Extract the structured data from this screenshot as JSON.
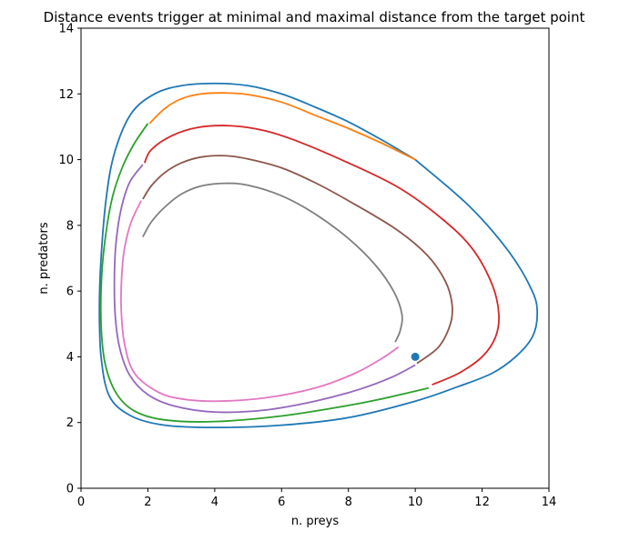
{
  "chart_data": {
    "type": "line",
    "title": "Distance events trigger at minimal and maximal distance from the target point",
    "xlabel": "n. preys",
    "ylabel": "n. predators",
    "xlim": [
      0,
      14
    ],
    "ylim": [
      0,
      14
    ],
    "xticks": [
      0,
      2,
      4,
      6,
      8,
      10,
      12,
      14
    ],
    "yticks": [
      0,
      2,
      4,
      6,
      8,
      10,
      12,
      14
    ],
    "grid": false,
    "legend": "none",
    "target_point": {
      "x": 10,
      "y": 4,
      "color": "#1f77b4"
    },
    "series": [
      {
        "color": "#1f77b4",
        "points": [
          [
            10.0,
            10.0
          ],
          [
            11.6,
            8.6
          ],
          [
            12.8,
            7.2
          ],
          [
            13.5,
            6.0
          ],
          [
            13.65,
            5.3
          ],
          [
            13.5,
            4.6
          ],
          [
            13.0,
            4.0
          ],
          [
            12.3,
            3.5
          ],
          [
            11.3,
            3.1
          ],
          [
            10.0,
            2.65
          ],
          [
            8.0,
            2.15
          ],
          [
            6.0,
            1.92
          ],
          [
            4.0,
            1.85
          ],
          [
            2.5,
            1.92
          ],
          [
            1.5,
            2.2
          ],
          [
            0.85,
            2.8
          ],
          [
            0.6,
            4.0
          ],
          [
            0.55,
            5.5
          ],
          [
            0.6,
            7.0
          ],
          [
            0.75,
            8.8
          ],
          [
            1.0,
            10.2
          ],
          [
            1.5,
            11.4
          ],
          [
            2.2,
            12.0
          ],
          [
            3.0,
            12.25
          ],
          [
            4.0,
            12.32
          ],
          [
            5.0,
            12.25
          ],
          [
            6.0,
            12.0
          ],
          [
            7.0,
            11.6
          ],
          [
            8.0,
            11.15
          ],
          [
            9.0,
            10.6
          ],
          [
            10.0,
            10.0
          ]
        ]
      },
      {
        "color": "#ff7f0e",
        "points": [
          [
            2.05,
            11.1
          ],
          [
            2.5,
            11.55
          ],
          [
            3.0,
            11.85
          ],
          [
            3.6,
            12.0
          ],
          [
            4.3,
            12.03
          ],
          [
            5.0,
            11.98
          ],
          [
            6.0,
            11.75
          ],
          [
            7.0,
            11.35
          ],
          [
            8.0,
            10.95
          ],
          [
            9.0,
            10.5
          ],
          [
            10.0,
            10.0
          ]
        ]
      },
      {
        "color": "#2ca02c",
        "points": [
          [
            10.4,
            3.05
          ],
          [
            9.0,
            2.72
          ],
          [
            8.0,
            2.52
          ],
          [
            6.0,
            2.2
          ],
          [
            4.0,
            2.03
          ],
          [
            2.5,
            2.08
          ],
          [
            1.6,
            2.35
          ],
          [
            1.05,
            2.9
          ],
          [
            0.72,
            3.8
          ],
          [
            0.6,
            5.0
          ],
          [
            0.62,
            6.5
          ],
          [
            0.75,
            7.8
          ],
          [
            0.95,
            8.9
          ],
          [
            1.25,
            9.8
          ],
          [
            1.6,
            10.5
          ],
          [
            2.0,
            11.1
          ]
        ]
      },
      {
        "color": "#d62728",
        "points": [
          [
            10.5,
            3.15
          ],
          [
            11.3,
            3.5
          ],
          [
            12.0,
            4.0
          ],
          [
            12.4,
            4.6
          ],
          [
            12.5,
            5.3
          ],
          [
            12.3,
            6.2
          ],
          [
            11.7,
            7.3
          ],
          [
            10.8,
            8.2
          ],
          [
            9.5,
            9.15
          ],
          [
            8.0,
            9.9
          ],
          [
            6.5,
            10.55
          ],
          [
            5.5,
            10.88
          ],
          [
            4.5,
            11.03
          ],
          [
            3.5,
            10.98
          ],
          [
            2.7,
            10.72
          ],
          [
            2.1,
            10.3
          ],
          [
            1.9,
            9.9
          ]
        ]
      },
      {
        "color": "#9467bd",
        "points": [
          [
            1.85,
            9.85
          ],
          [
            1.45,
            9.3
          ],
          [
            1.2,
            8.5
          ],
          [
            1.05,
            7.5
          ],
          [
            1.0,
            6.5
          ],
          [
            1.02,
            5.3
          ],
          [
            1.15,
            4.3
          ],
          [
            1.45,
            3.45
          ],
          [
            2.0,
            2.85
          ],
          [
            2.8,
            2.5
          ],
          [
            4.0,
            2.32
          ],
          [
            5.5,
            2.38
          ],
          [
            7.0,
            2.65
          ],
          [
            8.3,
            3.0
          ],
          [
            9.3,
            3.38
          ],
          [
            10.0,
            3.75
          ]
        ]
      },
      {
        "color": "#8c564b",
        "points": [
          [
            10.05,
            3.8
          ],
          [
            10.7,
            4.3
          ],
          [
            11.05,
            5.0
          ],
          [
            11.1,
            5.6
          ],
          [
            10.9,
            6.3
          ],
          [
            10.35,
            7.1
          ],
          [
            9.4,
            7.9
          ],
          [
            8.0,
            8.75
          ],
          [
            7.0,
            9.3
          ],
          [
            6.0,
            9.75
          ],
          [
            5.0,
            10.02
          ],
          [
            4.3,
            10.12
          ],
          [
            3.6,
            10.08
          ],
          [
            3.0,
            9.9
          ],
          [
            2.5,
            9.6
          ],
          [
            2.1,
            9.2
          ],
          [
            1.85,
            8.8
          ]
        ]
      },
      {
        "color": "#e377c2",
        "points": [
          [
            1.8,
            8.75
          ],
          [
            1.5,
            8.1
          ],
          [
            1.3,
            7.3
          ],
          [
            1.22,
            6.5
          ],
          [
            1.2,
            5.5
          ],
          [
            1.3,
            4.4
          ],
          [
            1.6,
            3.5
          ],
          [
            2.3,
            2.93
          ],
          [
            3.0,
            2.72
          ],
          [
            4.0,
            2.65
          ],
          [
            5.5,
            2.75
          ],
          [
            7.0,
            3.05
          ],
          [
            8.2,
            3.5
          ],
          [
            9.0,
            3.95
          ],
          [
            9.5,
            4.3
          ]
        ]
      },
      {
        "color": "#7f7f7f",
        "points": [
          [
            1.85,
            7.65
          ],
          [
            2.1,
            8.1
          ],
          [
            2.5,
            8.55
          ],
          [
            3.0,
            8.95
          ],
          [
            3.6,
            9.2
          ],
          [
            4.3,
            9.28
          ],
          [
            5.0,
            9.22
          ],
          [
            6.0,
            8.9
          ],
          [
            7.0,
            8.35
          ],
          [
            8.0,
            7.6
          ],
          [
            8.8,
            6.8
          ],
          [
            9.35,
            6.0
          ],
          [
            9.6,
            5.3
          ],
          [
            9.55,
            4.8
          ],
          [
            9.4,
            4.45
          ]
        ]
      }
    ]
  }
}
